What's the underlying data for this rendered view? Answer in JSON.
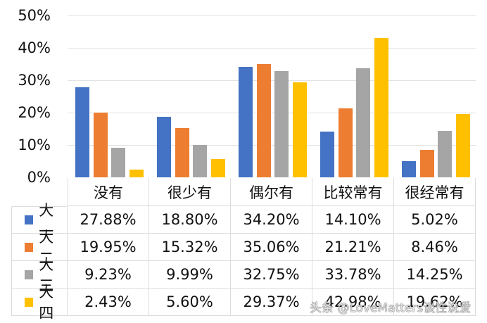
{
  "chart_data": {
    "type": "bar",
    "title": "",
    "xlabel": "",
    "ylabel": "",
    "ylim": [
      0,
      50
    ],
    "y_ticks": [
      "0%",
      "10%",
      "20%",
      "30%",
      "40%",
      "50%"
    ],
    "grid": true,
    "legend_position": "data-table",
    "categories": [
      "没有",
      "很少有",
      "偶尔有",
      "比较常有",
      "很经常有"
    ],
    "series": [
      {
        "name": "大一",
        "color": "#4472C4",
        "values": [
          27.88,
          18.8,
          34.2,
          14.1,
          5.02
        ],
        "labels": [
          "27.88%",
          "18.80%",
          "34.20%",
          "14.10%",
          "5.02%"
        ]
      },
      {
        "name": "大二",
        "color": "#ED7D31",
        "values": [
          19.95,
          15.32,
          35.06,
          21.21,
          8.46
        ],
        "labels": [
          "19.95%",
          "15.32%",
          "35.06%",
          "21.21%",
          "8.46%"
        ]
      },
      {
        "name": "大三",
        "color": "#A5A5A5",
        "values": [
          9.23,
          9.99,
          32.75,
          33.78,
          14.25
        ],
        "labels": [
          "9.23%",
          "9.99%",
          "32.75%",
          "33.78%",
          "14.25%"
        ]
      },
      {
        "name": "大四",
        "color": "#FFC000",
        "values": [
          2.43,
          5.6,
          29.37,
          42.98,
          19.62
        ],
        "labels": [
          "2.43%",
          "5.60%",
          "29.37%",
          "42.98%",
          "19.62%"
        ]
      }
    ]
  },
  "watermark": "头条 @LoveMatters谈性说爱"
}
